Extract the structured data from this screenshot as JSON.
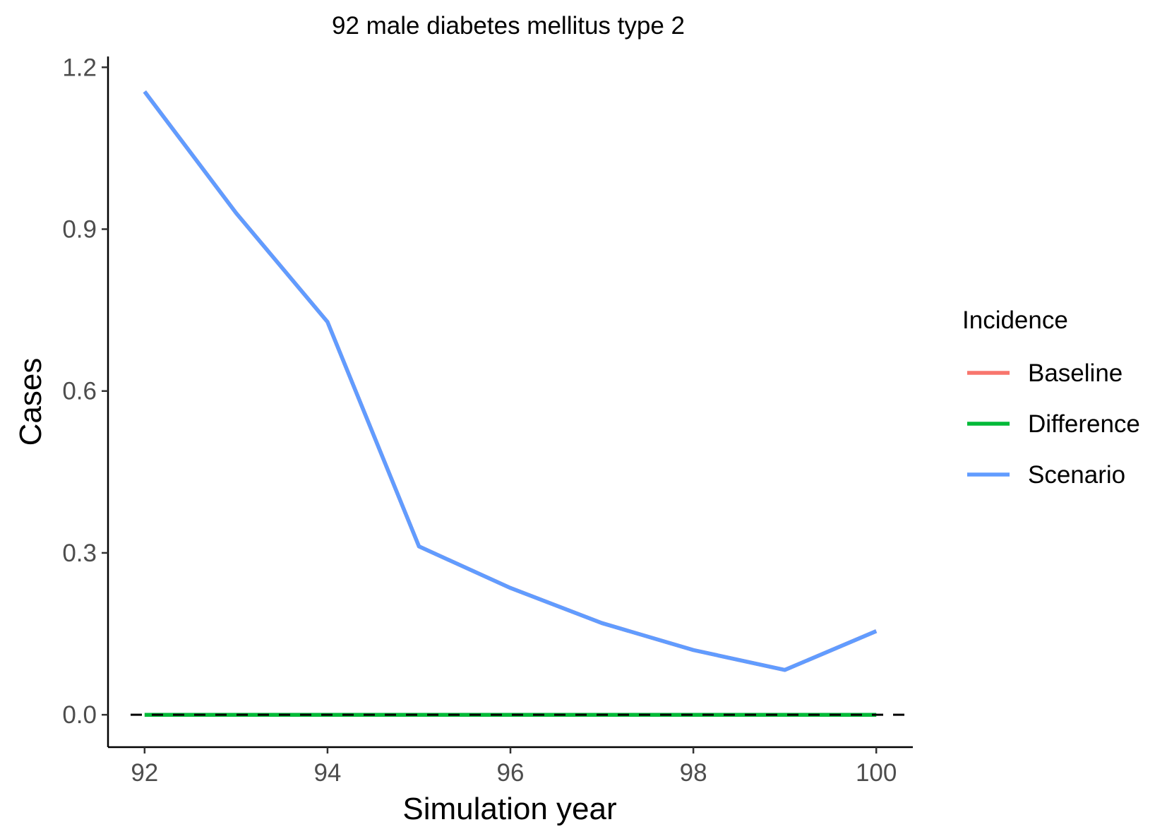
{
  "chart_data": {
    "type": "line",
    "title": "92 male diabetes mellitus type 2",
    "xlabel": "Simulation year",
    "ylabel": "Cases",
    "xlim": [
      91.6,
      100.4
    ],
    "ylim": [
      -0.06,
      1.22
    ],
    "x_ticks": [
      92,
      94,
      96,
      98,
      100
    ],
    "x_tick_labels": [
      "92",
      "94",
      "96",
      "98",
      "100"
    ],
    "y_ticks": [
      0.0,
      0.3,
      0.6,
      0.9,
      1.2
    ],
    "y_tick_labels": [
      "0.0",
      "0.3",
      "0.6",
      "0.9",
      "1.2"
    ],
    "grid": false,
    "reference_line": {
      "y": 0,
      "style": "dashed",
      "color": "#000000"
    },
    "legend": {
      "title": "Incidence",
      "position": "right"
    },
    "x": [
      92,
      93,
      94,
      95,
      96,
      97,
      98,
      99,
      100
    ],
    "series": [
      {
        "name": "Baseline",
        "color": "#F8766D",
        "values": [
          1.155,
          0.93,
          0.728,
          0.312,
          0.235,
          0.17,
          0.12,
          0.083,
          0.155
        ]
      },
      {
        "name": "Difference",
        "color": "#00BA38",
        "values": [
          0.0,
          0.0,
          0.0,
          0.0,
          0.0,
          0.0,
          0.0,
          0.0,
          0.0
        ]
      },
      {
        "name": "Scenario",
        "color": "#619CFF",
        "values": [
          1.155,
          0.93,
          0.728,
          0.312,
          0.235,
          0.17,
          0.12,
          0.083,
          0.155
        ]
      }
    ]
  }
}
